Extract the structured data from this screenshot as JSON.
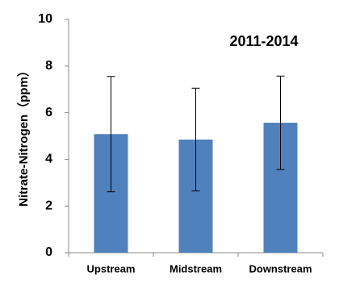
{
  "chart_data": {
    "type": "bar",
    "annotation": "2011-2014",
    "y_label": "Nitrate-Nitrogen（ppm）",
    "categories": [
      "Upstream",
      "Midstream",
      "Downstream"
    ],
    "values": [
      5.08,
      4.85,
      5.57
    ],
    "errors": [
      2.47,
      2.2,
      2.0
    ],
    "color": "#4f81bd",
    "ylim": [
      0,
      10
    ],
    "yticks": [
      0,
      2,
      4,
      6,
      8,
      10
    ],
    "grid": false
  }
}
